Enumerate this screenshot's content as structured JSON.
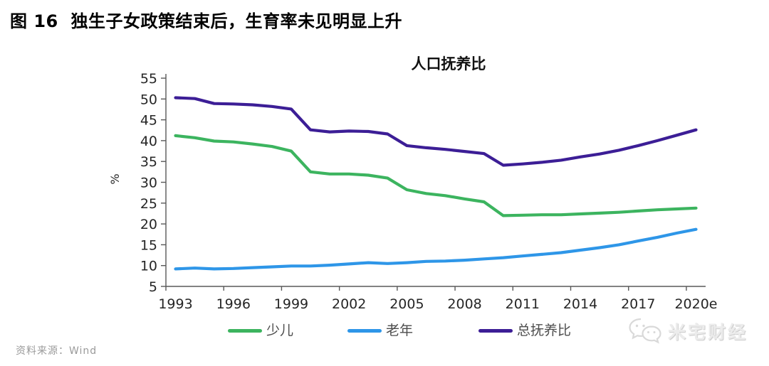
{
  "figure": {
    "title": "图 16  独生子女政策结束后，生育率未见明显上升",
    "source": "资料来源：Wind",
    "watermark": "米宅财经"
  },
  "chart_data": {
    "type": "line",
    "title": "人口抚养比",
    "ylabel": "%",
    "ylim": [
      5,
      55
    ],
    "y_ticks": [
      5,
      10,
      15,
      20,
      25,
      30,
      35,
      40,
      45,
      50,
      55
    ],
    "grid": false,
    "legend_position": "bottom",
    "x_categories": [
      1993,
      1994,
      1995,
      1996,
      1997,
      1998,
      1999,
      2000,
      2001,
      2002,
      2003,
      2004,
      2005,
      2006,
      2007,
      2008,
      2009,
      2010,
      2011,
      2012,
      2013,
      2014,
      2015,
      2016,
      2017,
      2018,
      2019,
      2020
    ],
    "x_tick_labels": [
      "1993",
      "1996",
      "1999",
      "2002",
      "2005",
      "2008",
      "2011",
      "2014",
      "2017",
      "2020e"
    ],
    "series": [
      {
        "id": "child",
        "name": "少儿",
        "color": "#3cb45f",
        "values": [
          41.2,
          40.7,
          39.9,
          39.7,
          39.2,
          38.6,
          37.5,
          32.5,
          32.0,
          32.0,
          31.7,
          31.0,
          28.2,
          27.3,
          26.8,
          26.0,
          25.3,
          22.0,
          22.1,
          22.2,
          22.2,
          22.4,
          22.6,
          22.8,
          23.1,
          23.4,
          23.6,
          23.8
        ]
      },
      {
        "id": "elderly",
        "name": "老年",
        "color": "#2e96e8",
        "values": [
          9.2,
          9.4,
          9.2,
          9.3,
          9.5,
          9.7,
          9.9,
          9.9,
          10.1,
          10.4,
          10.7,
          10.5,
          10.7,
          11.0,
          11.1,
          11.3,
          11.6,
          11.9,
          12.3,
          12.7,
          13.1,
          13.7,
          14.3,
          15.0,
          15.9,
          16.8,
          17.8,
          18.7
        ]
      },
      {
        "id": "total",
        "name": "总抚养比",
        "color": "#3c1e96",
        "values": [
          50.3,
          50.1,
          48.9,
          48.8,
          48.6,
          48.2,
          47.6,
          42.6,
          42.1,
          42.3,
          42.2,
          41.6,
          38.8,
          38.3,
          37.9,
          37.4,
          36.9,
          34.1,
          34.4,
          34.8,
          35.3,
          36.1,
          36.8,
          37.7,
          38.8,
          40.0,
          41.3,
          42.6
        ]
      }
    ]
  }
}
